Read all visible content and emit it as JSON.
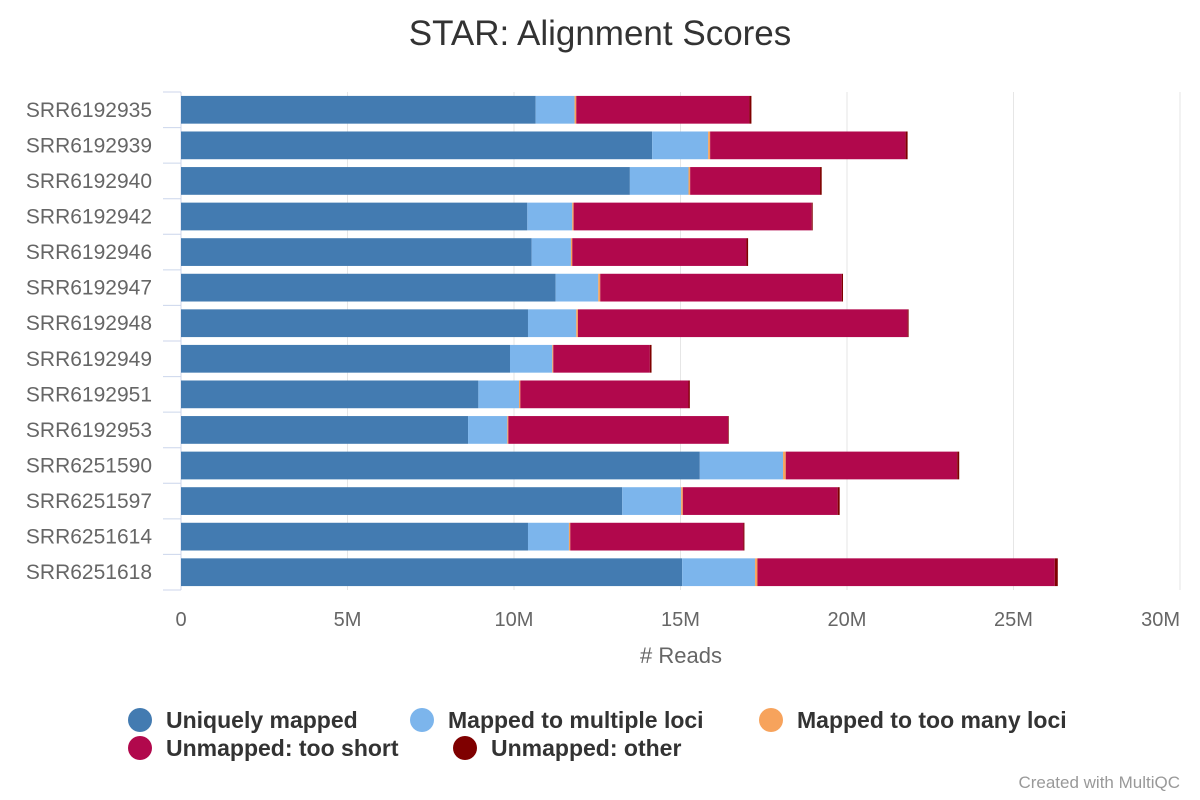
{
  "chart_data": {
    "type": "bar",
    "orientation": "horizontal",
    "stacked": true,
    "title": "STAR: Alignment Scores",
    "xlabel": "# Reads",
    "ylabel": "",
    "xlim": [
      0,
      30000000
    ],
    "x_ticks": [
      0,
      5000000,
      10000000,
      15000000,
      20000000,
      25000000,
      30000000
    ],
    "x_tick_labels": [
      "0",
      "5M",
      "10M",
      "15M",
      "20M",
      "25M",
      "30M"
    ],
    "grid": true,
    "legend_position": "bottom",
    "categories": [
      "SRR6192935",
      "SRR6192939",
      "SRR6192940",
      "SRR6192942",
      "SRR6192946",
      "SRR6192947",
      "SRR6192948",
      "SRR6192949",
      "SRR6192951",
      "SRR6192953",
      "SRR6251590",
      "SRR6251597",
      "SRR6251614",
      "SRR6251618"
    ],
    "series": [
      {
        "name": "Uniquely mapped",
        "color": "#437bb1",
        "values": [
          10650000,
          14150000,
          13480000,
          10400000,
          10530000,
          11250000,
          10420000,
          9880000,
          8930000,
          8620000,
          15580000,
          13250000,
          10420000,
          15050000
        ]
      },
      {
        "name": "Mapped to multiple loci",
        "color": "#7cb5ec",
        "values": [
          1170000,
          1680000,
          1760000,
          1350000,
          1180000,
          1280000,
          1450000,
          1270000,
          1220000,
          1180000,
          2500000,
          1770000,
          1230000,
          2190000
        ]
      },
      {
        "name": "Mapped to too many loci",
        "color": "#f7a35c",
        "values": [
          50000,
          60000,
          50000,
          40000,
          40000,
          60000,
          50000,
          30000,
          40000,
          30000,
          80000,
          50000,
          40000,
          70000
        ]
      },
      {
        "name": "Unmapped: too short",
        "color": "#b1084c",
        "values": [
          5200000,
          5870000,
          3900000,
          7150000,
          5230000,
          7250000,
          9900000,
          2900000,
          5050000,
          6600000,
          5150000,
          4650000,
          5200000,
          8930000
        ]
      },
      {
        "name": "Unmapped: other",
        "color": "#7f0000",
        "values": [
          60000,
          60000,
          50000,
          30000,
          50000,
          40000,
          30000,
          50000,
          40000,
          20000,
          60000,
          60000,
          30000,
          90000
        ]
      }
    ]
  },
  "credits": "Created with MultiQC"
}
